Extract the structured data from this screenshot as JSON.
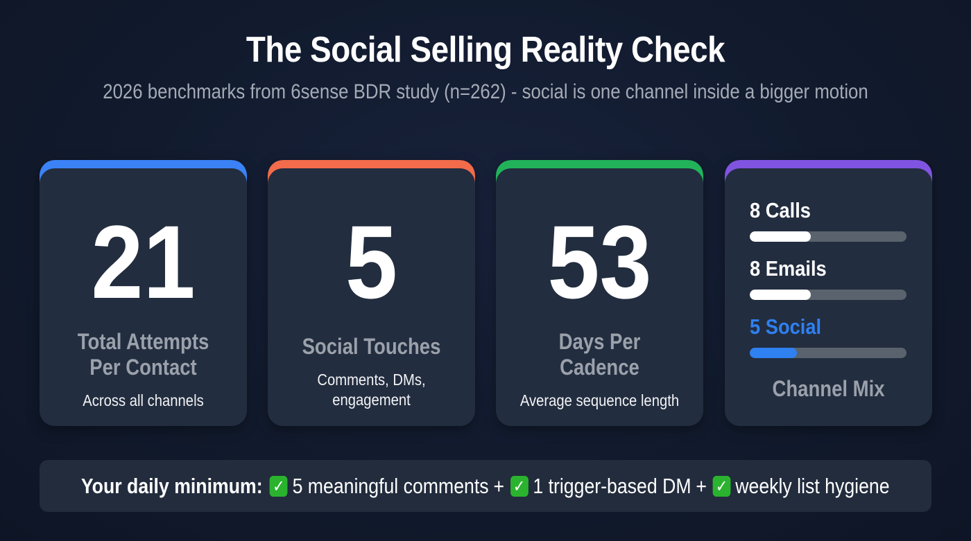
{
  "header": {
    "title": "The Social Selling Reality Check",
    "subtitle": "2026 benchmarks from 6sense BDR study (n=262) - social is one channel inside a bigger motion"
  },
  "cards": [
    {
      "value": "21",
      "label_line1": "Total Attempts",
      "label_line2": "Per Contact",
      "sub_line1": "Across all channels",
      "sub_line2": "",
      "accent": "#3b82f6"
    },
    {
      "value": "5",
      "label_line1": "Social Touches",
      "label_line2": "",
      "sub_line1": "Comments, DMs,",
      "sub_line2": "engagement",
      "accent": "#f26b4b"
    },
    {
      "value": "53",
      "label_line1": "Days Per",
      "label_line2": "Cadence",
      "sub_line1": "Average sequence length",
      "sub_line2": "",
      "accent": "#22b35a"
    }
  ],
  "channel_mix": {
    "accent": "#8054e0",
    "title": "Channel Mix",
    "items": [
      {
        "label": "8 Calls",
        "count": 8,
        "fill_pct": 39,
        "color": "#ffffff",
        "label_color": "#ffffff"
      },
      {
        "label": "8 Emails",
        "count": 8,
        "fill_pct": 39,
        "color": "#ffffff",
        "label_color": "#ffffff"
      },
      {
        "label": "5 Social",
        "count": 5,
        "fill_pct": 30,
        "color": "#2f80f0",
        "label_color": "#2f80f0"
      }
    ]
  },
  "banner": {
    "lead": "Your daily minimum:",
    "check_icon": "✓",
    "items": [
      "5 meaningful comments",
      "1 trigger-based DM",
      "weekly list hygiene"
    ],
    "separator": "+"
  }
}
